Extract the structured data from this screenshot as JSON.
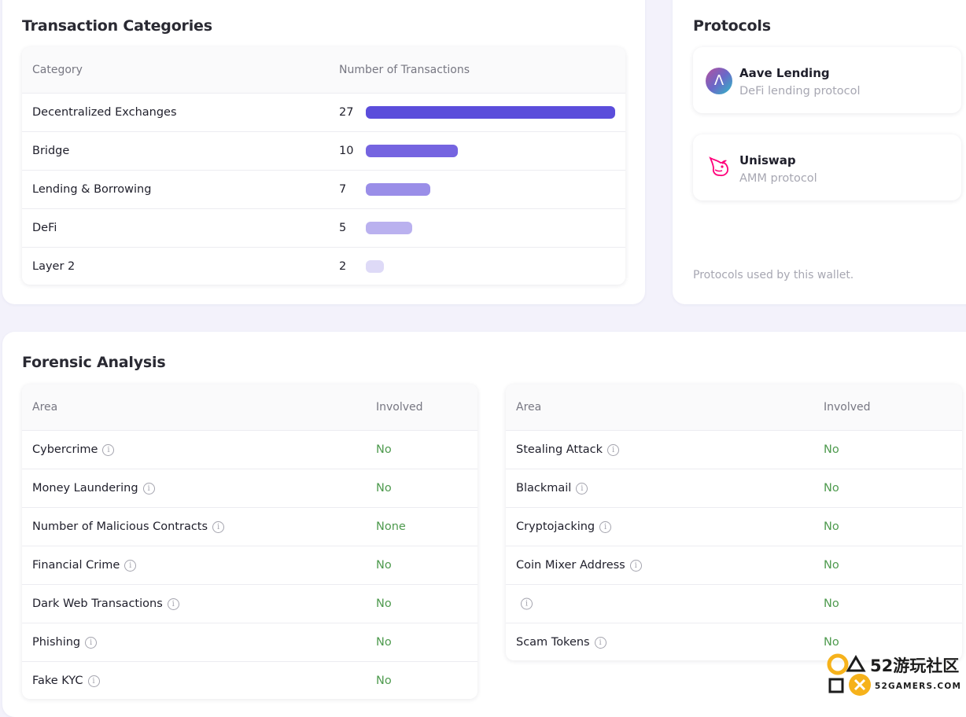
{
  "transaction_categories": {
    "title": "Transaction Categories",
    "headers": {
      "category": "Category",
      "count": "Number of Transactions"
    },
    "rows": [
      {
        "label": "Decentralized Exchanges",
        "count": "27",
        "value": 27,
        "color": "#5b4ddb"
      },
      {
        "label": "Bridge",
        "count": "10",
        "value": 10,
        "color": "#7564e0"
      },
      {
        "label": "Lending & Borrowing",
        "count": "7",
        "value": 7,
        "color": "#9a8ee8"
      },
      {
        "label": "DeFi",
        "count": "5",
        "value": 5,
        "color": "#bab1ef"
      },
      {
        "label": "Layer 2",
        "count": "2",
        "value": 2,
        "color": "#dedaf7"
      }
    ],
    "max_value": 27
  },
  "protocols": {
    "title": "Protocols",
    "items": [
      {
        "name": "Aave Lending",
        "description": "DeFi lending protocol",
        "icon": "aave-logo-icon"
      },
      {
        "name": "Uniswap",
        "description": "AMM protocol",
        "icon": "uniswap-logo-icon"
      }
    ],
    "footnote": "Protocols used by this wallet."
  },
  "forensic_analysis": {
    "title": "Forensic Analysis",
    "headers": {
      "area": "Area",
      "involved": "Involved"
    },
    "left": [
      {
        "area": "Cybercrime",
        "involved": "No"
      },
      {
        "area": "Money Laundering",
        "involved": "No"
      },
      {
        "area": "Number of Malicious Contracts",
        "involved": "None"
      },
      {
        "area": "Financial Crime",
        "involved": "No"
      },
      {
        "area": "Dark Web Transactions",
        "involved": "No"
      },
      {
        "area": "Phishing",
        "involved": "No"
      },
      {
        "area": "Fake KYC",
        "involved": "No"
      }
    ],
    "right": [
      {
        "area": "Stealing Attack",
        "involved": "No"
      },
      {
        "area": "Blackmail",
        "involved": "No"
      },
      {
        "area": "Cryptojacking",
        "involved": "No"
      },
      {
        "area": "Coin Mixer Address",
        "involved": "No"
      },
      {
        "area": "",
        "involved": "No"
      },
      {
        "area": "Scam Tokens",
        "involved": "No"
      }
    ]
  },
  "watermark": {
    "brand": "52游玩社区",
    "url": "52GAMERS.COM"
  },
  "colors": {
    "status_ok": "#4e9a4e",
    "accent": "#5b4ddb"
  }
}
